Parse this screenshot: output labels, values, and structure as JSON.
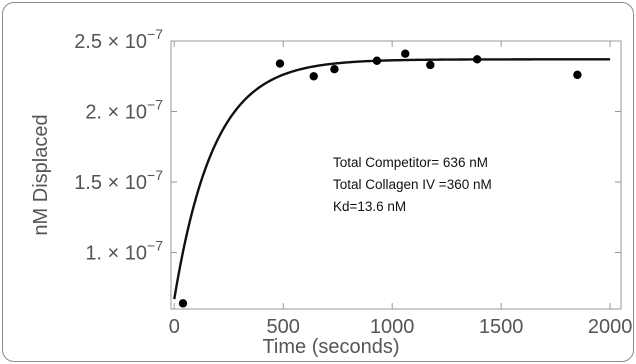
{
  "chart_data": {
    "type": "scatter",
    "xlabel": "Time (seconds)",
    "ylabel": "nM Displaced",
    "xlim": [
      -15,
      2050
    ],
    "ylim": [
      6e-08,
      2.5e-07
    ],
    "x_ticks": [
      0,
      500,
      1000,
      1500,
      2000
    ],
    "y_ticks": [
      {
        "value": 1e-07,
        "mantissa": "1. × 10",
        "exp": "−7"
      },
      {
        "value": 1.5e-07,
        "mantissa": "1.5 × 10",
        "exp": "−7"
      },
      {
        "value": 2e-07,
        "mantissa": "2. × 10",
        "exp": "−7"
      },
      {
        "value": 2.5e-07,
        "mantissa": "2.5 × 10",
        "exp": "−7"
      }
    ],
    "series": [
      {
        "points": [
          {
            "x": 40,
            "y": 6.4e-08
          },
          {
            "x": 485,
            "y": 2.34e-07
          },
          {
            "x": 640,
            "y": 2.25e-07
          },
          {
            "x": 735,
            "y": 2.3e-07
          },
          {
            "x": 930,
            "y": 2.36e-07
          },
          {
            "x": 1060,
            "y": 2.41e-07
          },
          {
            "x": 1175,
            "y": 2.33e-07
          },
          {
            "x": 1390,
            "y": 2.37e-07
          },
          {
            "x": 1850,
            "y": 2.26e-07
          }
        ]
      },
      {
        "curve": {
          "model": "exponential",
          "start": [
            0,
            6.7e-08
          ],
          "plateau": 2.37e-07,
          "k": 0.0055,
          "x_range": [
            0,
            2000
          ]
        }
      }
    ],
    "annotations": [
      "Total Competitor= 636 nM",
      "Total Collagen IV =360 nM",
      "Kd=13.6 nM"
    ],
    "grid": false
  }
}
